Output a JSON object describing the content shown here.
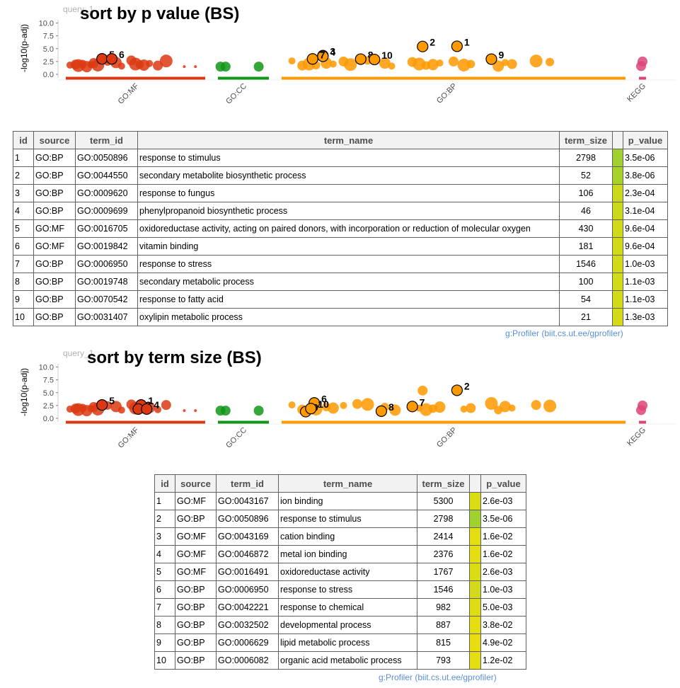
{
  "panels": [
    {
      "query_label": "query_1",
      "title": "sort by p value (BS)",
      "ylabel": "-log10(p-adj)",
      "yticks": [
        "0.0",
        "2.5",
        "5.0",
        "7.5",
        "10.0"
      ],
      "sources": [
        "GO:MF",
        "GO:CC",
        "GO:BP",
        "KEGG"
      ],
      "table": {
        "headers": [
          "id",
          "source",
          "term_id",
          "term_name",
          "term_size",
          "",
          "p_value"
        ],
        "rows": [
          {
            "id": "1",
            "source": "GO:BP",
            "term_id": "GO:0050896",
            "term_name": "response to stimulus",
            "term_size": "2798",
            "color": "#a0d12e",
            "p_value": "3.5e-06"
          },
          {
            "id": "2",
            "source": "GO:BP",
            "term_id": "GO:0044550",
            "term_name": "secondary metabolite biosynthetic process",
            "term_size": "52",
            "color": "#a7d22a",
            "p_value": "3.8e-06"
          },
          {
            "id": "3",
            "source": "GO:BP",
            "term_id": "GO:0009620",
            "term_name": "response to fungus",
            "term_size": "106",
            "color": "#cad81d",
            "p_value": "2.3e-04"
          },
          {
            "id": "4",
            "source": "GO:BP",
            "term_id": "GO:0009699",
            "term_name": "phenylpropanoid biosynthetic process",
            "term_size": "46",
            "color": "#cbd81c",
            "p_value": "3.1e-04"
          },
          {
            "id": "5",
            "source": "GO:MF",
            "term_id": "GO:0016705",
            "term_name": "oxidoreductase activity, acting on paired donors, with incorporation or reduction of molecular oxygen",
            "term_size": "430",
            "color": "#d1da1a",
            "p_value": "9.6e-04"
          },
          {
            "id": "6",
            "source": "GO:MF",
            "term_id": "GO:0019842",
            "term_name": "vitamin binding",
            "term_size": "181",
            "color": "#d1da1a",
            "p_value": "9.6e-04"
          },
          {
            "id": "7",
            "source": "GO:BP",
            "term_id": "GO:0006950",
            "term_name": "response to stress",
            "term_size": "1546",
            "color": "#d2da19",
            "p_value": "1.0e-03"
          },
          {
            "id": "8",
            "source": "GO:BP",
            "term_id": "GO:0019748",
            "term_name": "secondary metabolic process",
            "term_size": "100",
            "color": "#d3da19",
            "p_value": "1.1e-03"
          },
          {
            "id": "9",
            "source": "GO:BP",
            "term_id": "GO:0070542",
            "term_name": "response to fatty acid",
            "term_size": "54",
            "color": "#d3da19",
            "p_value": "1.1e-03"
          },
          {
            "id": "10",
            "source": "GO:BP",
            "term_id": "GO:0031407",
            "term_name": "oxylipin metabolic process",
            "term_size": "21",
            "color": "#d4da18",
            "p_value": "1.3e-03"
          }
        ]
      },
      "credit": "g:Profiler (biit.cs.ut.ee/gprofiler)"
    },
    {
      "query_label": "query_1",
      "title": "sort by term size (BS)",
      "ylabel": "-log10(p-adj)",
      "yticks": [
        "0.0",
        "2.5",
        "5.0",
        "7.5",
        "10.0"
      ],
      "sources": [
        "GO:MF",
        "GO:CC",
        "GO:BP",
        "KEGG"
      ],
      "table": {
        "headers": [
          "id",
          "source",
          "term_id",
          "term_name",
          "term_size",
          "",
          "p_value"
        ],
        "rows": [
          {
            "id": "1",
            "source": "GO:MF",
            "term_id": "GO:0043167",
            "term_name": "ion binding",
            "term_size": "5300",
            "color": "#dcdc15",
            "p_value": "2.6e-03"
          },
          {
            "id": "2",
            "source": "GO:BP",
            "term_id": "GO:0050896",
            "term_name": "response to stimulus",
            "term_size": "2798",
            "color": "#a0d12e",
            "p_value": "3.5e-06"
          },
          {
            "id": "3",
            "source": "GO:MF",
            "term_id": "GO:0043169",
            "term_name": "cation binding",
            "term_size": "2414",
            "color": "#e3dd12",
            "p_value": "1.6e-02"
          },
          {
            "id": "4",
            "source": "GO:MF",
            "term_id": "GO:0046872",
            "term_name": "metal ion binding",
            "term_size": "2376",
            "color": "#e3dd12",
            "p_value": "1.6e-02"
          },
          {
            "id": "5",
            "source": "GO:MF",
            "term_id": "GO:0016491",
            "term_name": "oxidoreductase activity",
            "term_size": "1767",
            "color": "#dcdc15",
            "p_value": "2.6e-03"
          },
          {
            "id": "6",
            "source": "GO:BP",
            "term_id": "GO:0006950",
            "term_name": "response to stress",
            "term_size": "1546",
            "color": "#d2da19",
            "p_value": "1.0e-03"
          },
          {
            "id": "7",
            "source": "GO:BP",
            "term_id": "GO:0042221",
            "term_name": "response to chemical",
            "term_size": "982",
            "color": "#dfdc14",
            "p_value": "5.0e-03"
          },
          {
            "id": "8",
            "source": "GO:BP",
            "term_id": "GO:0032502",
            "term_name": "developmental process",
            "term_size": "887",
            "color": "#e6dd11",
            "p_value": "3.8e-02"
          },
          {
            "id": "9",
            "source": "GO:BP",
            "term_id": "GO:0006629",
            "term_name": "lipid metabolic process",
            "term_size": "815",
            "color": "#e7dd11",
            "p_value": "4.9e-02"
          },
          {
            "id": "10",
            "source": "GO:BP",
            "term_id": "GO:0006082",
            "term_name": "organic acid metabolic process",
            "term_size": "793",
            "color": "#e4dd12",
            "p_value": "1.2e-02"
          }
        ]
      },
      "credit": "g:Profiler (biit.cs.ut.ee/gprofiler)"
    }
  ],
  "chart_data": [
    {
      "type": "scatter",
      "title": "sort by p value (BS)",
      "ylabel": "-log10(p-adj)",
      "ylim": [
        0,
        10
      ],
      "categories": [
        "GO:MF",
        "GO:CC",
        "GO:BP",
        "KEGG"
      ],
      "colors": {
        "GO:MF": "#dc3912",
        "GO:CC": "#109618",
        "GO:BP": "#ff9900",
        "KEGG": "#dd4477"
      },
      "highlighted": [
        {
          "label": "1",
          "source": "GO:BP",
          "x_frac": 0.51,
          "y": 5.46
        },
        {
          "label": "2",
          "source": "GO:BP",
          "x_frac": 0.41,
          "y": 5.42
        },
        {
          "label": "3",
          "source": "GO:BP",
          "x_frac": 0.12,
          "y": 3.64
        },
        {
          "label": "4",
          "source": "GO:BP",
          "x_frac": 0.12,
          "y": 3.51
        },
        {
          "label": "5",
          "source": "GO:MF",
          "x_frac": 0.26,
          "y": 3.02
        },
        {
          "label": "6",
          "source": "GO:MF",
          "x_frac": 0.33,
          "y": 3.02
        },
        {
          "label": "7",
          "source": "GO:BP",
          "x_frac": 0.09,
          "y": 3.0
        },
        {
          "label": "8",
          "source": "GO:BP",
          "x_frac": 0.23,
          "y": 2.96
        },
        {
          "label": "9",
          "source": "GO:BP",
          "x_frac": 0.61,
          "y": 2.96
        },
        {
          "label": "10",
          "source": "GO:BP",
          "x_frac": 0.27,
          "y": 2.89
        }
      ],
      "other_points": {
        "GO:MF": [
          [
            0.03,
            1.8
          ],
          [
            0.07,
            1.9
          ],
          [
            0.09,
            1.7
          ],
          [
            0.12,
            2.0
          ],
          [
            0.15,
            1.5
          ],
          [
            0.18,
            1.9
          ],
          [
            0.2,
            2.2
          ],
          [
            0.23,
            1.8
          ],
          [
            0.3,
            2.5
          ],
          [
            0.36,
            2.3
          ],
          [
            0.4,
            1.6
          ],
          [
            0.47,
            2.7
          ],
          [
            0.5,
            2.0
          ],
          [
            0.53,
            1.9
          ],
          [
            0.56,
            1.8
          ],
          [
            0.6,
            2.1
          ],
          [
            0.66,
            1.7
          ],
          [
            0.72,
            2.6
          ],
          [
            0.85,
            1.5
          ],
          [
            0.93,
            1.5
          ]
        ],
        "GO:CC": [
          [
            0.05,
            1.5
          ],
          [
            0.15,
            1.5
          ],
          [
            0.8,
            1.5
          ]
        ],
        "GO:BP": [
          [
            0.03,
            2.6
          ],
          [
            0.06,
            1.7
          ],
          [
            0.08,
            2.0
          ],
          [
            0.1,
            1.8
          ],
          [
            0.13,
            2.2
          ],
          [
            0.15,
            2.0
          ],
          [
            0.18,
            2.5
          ],
          [
            0.2,
            1.9
          ],
          [
            0.25,
            2.7
          ],
          [
            0.3,
            2.2
          ],
          [
            0.32,
            1.6
          ],
          [
            0.38,
            2.4
          ],
          [
            0.4,
            2.0
          ],
          [
            0.42,
            1.7
          ],
          [
            0.44,
            1.9
          ],
          [
            0.46,
            2.2
          ],
          [
            0.5,
            2.5
          ],
          [
            0.53,
            1.8
          ],
          [
            0.55,
            2.0
          ],
          [
            0.63,
            1.6
          ],
          [
            0.65,
            2.3
          ],
          [
            0.67,
            2.0
          ],
          [
            0.74,
            2.6
          ],
          [
            0.78,
            2.4
          ]
        ],
        "KEGG": [
          [
            0.5,
            2.5
          ],
          [
            0.3,
            1.6
          ]
        ]
      }
    },
    {
      "type": "scatter",
      "title": "sort by term size (BS)",
      "ylabel": "-log10(p-adj)",
      "ylim": [
        0,
        10
      ],
      "categories": [
        "GO:MF",
        "GO:CC",
        "GO:BP",
        "KEGG"
      ],
      "colors": {
        "GO:MF": "#dc3912",
        "GO:CC": "#109618",
        "GO:BP": "#ff9900",
        "KEGG": "#dd4477"
      },
      "highlighted": [
        {
          "label": "1",
          "source": "GO:MF",
          "x_frac": 0.54,
          "y": 2.6
        },
        {
          "label": "2",
          "source": "GO:BP",
          "x_frac": 0.51,
          "y": 5.46
        },
        {
          "label": "3",
          "source": "GO:MF",
          "x_frac": 0.52,
          "y": 1.8
        },
        {
          "label": "4",
          "source": "GO:MF",
          "x_frac": 0.58,
          "y": 1.8
        },
        {
          "label": "5",
          "source": "GO:MF",
          "x_frac": 0.26,
          "y": 2.6
        },
        {
          "label": "6",
          "source": "GO:BP",
          "x_frac": 0.095,
          "y": 3.0
        },
        {
          "label": "7",
          "source": "GO:BP",
          "x_frac": 0.38,
          "y": 2.3
        },
        {
          "label": "8",
          "source": "GO:BP",
          "x_frac": 0.29,
          "y": 1.4
        },
        {
          "label": "9",
          "source": "GO:BP",
          "x_frac": 0.07,
          "y": 1.3
        },
        {
          "label": "10",
          "source": "GO:BP",
          "x_frac": 0.085,
          "y": 1.9
        }
      ],
      "other_points": {
        "GO:MF": [
          [
            0.03,
            1.8
          ],
          [
            0.07,
            1.9
          ],
          [
            0.09,
            1.7
          ],
          [
            0.12,
            2.0
          ],
          [
            0.15,
            1.5
          ],
          [
            0.18,
            1.9
          ],
          [
            0.2,
            2.2
          ],
          [
            0.23,
            1.8
          ],
          [
            0.3,
            2.5
          ],
          [
            0.36,
            2.3
          ],
          [
            0.4,
            1.6
          ],
          [
            0.47,
            2.7
          ],
          [
            0.5,
            2.0
          ],
          [
            0.56,
            1.8
          ],
          [
            0.6,
            2.1
          ],
          [
            0.66,
            1.7
          ],
          [
            0.72,
            2.6
          ],
          [
            0.85,
            1.5
          ],
          [
            0.93,
            1.5
          ]
        ],
        "GO:CC": [
          [
            0.05,
            1.5
          ],
          [
            0.15,
            1.5
          ],
          [
            0.8,
            1.5
          ]
        ],
        "GO:BP": [
          [
            0.03,
            2.6
          ],
          [
            0.06,
            1.7
          ],
          [
            0.1,
            1.8
          ],
          [
            0.13,
            2.2
          ],
          [
            0.15,
            2.0
          ],
          [
            0.18,
            2.5
          ],
          [
            0.22,
            2.8
          ],
          [
            0.25,
            2.7
          ],
          [
            0.3,
            2.2
          ],
          [
            0.33,
            1.6
          ],
          [
            0.4,
            2.0
          ],
          [
            0.41,
            5.4
          ],
          [
            0.42,
            1.7
          ],
          [
            0.44,
            1.9
          ],
          [
            0.46,
            2.2
          ],
          [
            0.53,
            1.8
          ],
          [
            0.55,
            2.0
          ],
          [
            0.61,
            2.9
          ],
          [
            0.63,
            1.6
          ],
          [
            0.65,
            2.3
          ],
          [
            0.67,
            2.0
          ],
          [
            0.74,
            2.6
          ],
          [
            0.78,
            2.4
          ]
        ],
        "KEGG": [
          [
            0.5,
            2.5
          ],
          [
            0.3,
            1.6
          ]
        ]
      }
    }
  ]
}
